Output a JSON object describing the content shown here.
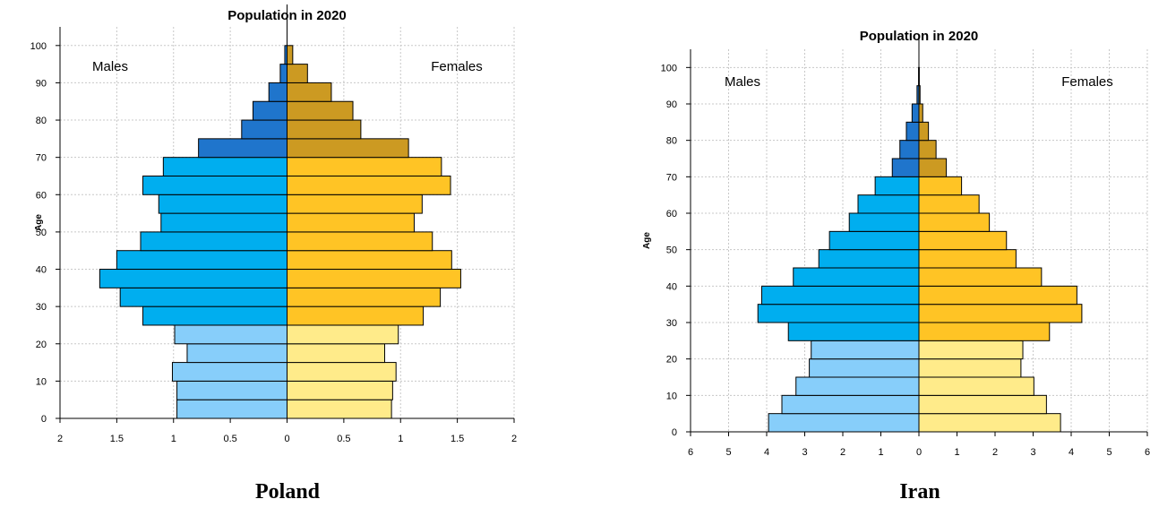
{
  "colors": {
    "male_young": "#87CEFA",
    "male_adult": "#00AEEF",
    "male_old": "#1F75CC",
    "female_young": "#FFEB8A",
    "female_adult": "#FFC425",
    "female_old": "#CC9A22",
    "grid": "#c8c8c8",
    "outline": "#000000"
  },
  "chart_data": [
    {
      "type": "bar",
      "orientation": "horizontal-pyramid",
      "title": "Population in 2020",
      "country": "Poland",
      "ylabel": "Age",
      "left_label": "Males",
      "right_label": "Females",
      "xlim": [
        -2,
        2
      ],
      "ylim": [
        0,
        105
      ],
      "x_ticks": [
        -2,
        -1.5,
        -1,
        -0.5,
        0,
        0.5,
        1,
        1.5,
        2
      ],
      "x_tick_labels": [
        "2",
        "1.5",
        "1",
        "0.5",
        "0",
        "0.5",
        "1",
        "1.5",
        "2"
      ],
      "y_ticks": [
        0,
        10,
        20,
        30,
        40,
        50,
        60,
        70,
        80,
        90,
        100
      ],
      "y_tick_labels": [
        "0",
        "10",
        "20",
        "30",
        "40",
        "50",
        "60",
        "70",
        "80",
        "90",
        "100"
      ],
      "grid": true,
      "age_groups": [
        "0-4",
        "5-9",
        "10-14",
        "15-19",
        "20-24",
        "25-29",
        "30-34",
        "35-39",
        "40-44",
        "45-49",
        "50-54",
        "55-59",
        "60-64",
        "65-69",
        "70-74",
        "75-79",
        "80-84",
        "85-89",
        "90-94",
        "95-99",
        "100+"
      ],
      "series": [
        {
          "name": "Males",
          "values": [
            0.97,
            0.97,
            1.01,
            0.88,
            0.99,
            1.27,
            1.47,
            1.65,
            1.5,
            1.29,
            1.11,
            1.13,
            1.27,
            1.09,
            0.78,
            0.4,
            0.3,
            0.16,
            0.06,
            0.02,
            0
          ]
        },
        {
          "name": "Females",
          "values": [
            0.92,
            0.93,
            0.96,
            0.86,
            0.98,
            1.2,
            1.35,
            1.53,
            1.45,
            1.28,
            1.12,
            1.19,
            1.44,
            1.36,
            1.07,
            0.65,
            0.58,
            0.39,
            0.18,
            0.05,
            0
          ]
        }
      ]
    },
    {
      "type": "bar",
      "orientation": "horizontal-pyramid",
      "title": "Population in 2020",
      "country": "Iran",
      "ylabel": "Age",
      "left_label": "Males",
      "right_label": "Females",
      "xlim": [
        -6,
        6
      ],
      "ylim": [
        0,
        105
      ],
      "x_ticks": [
        -6,
        -5,
        -4,
        -3,
        -2,
        -1,
        0,
        1,
        2,
        3,
        4,
        5,
        6
      ],
      "x_tick_labels": [
        "6",
        "5",
        "4",
        "3",
        "2",
        "1",
        "0",
        "1",
        "2",
        "3",
        "4",
        "5",
        "6"
      ],
      "y_ticks": [
        0,
        10,
        20,
        30,
        40,
        50,
        60,
        70,
        80,
        90,
        100
      ],
      "y_tick_labels": [
        "0",
        "10",
        "20",
        "30",
        "40",
        "50",
        "60",
        "70",
        "80",
        "90",
        "100"
      ],
      "grid": true,
      "age_groups": [
        "0-4",
        "5-9",
        "10-14",
        "15-19",
        "20-24",
        "25-29",
        "30-34",
        "35-39",
        "40-44",
        "45-49",
        "50-54",
        "55-59",
        "60-64",
        "65-69",
        "70-74",
        "75-79",
        "80-84",
        "85-89",
        "90-94",
        "95-99",
        "100+"
      ],
      "series": [
        {
          "name": "Males",
          "values": [
            3.95,
            3.6,
            3.23,
            2.88,
            2.83,
            3.43,
            4.23,
            4.13,
            3.3,
            2.63,
            2.35,
            1.83,
            1.6,
            1.15,
            0.7,
            0.5,
            0.33,
            0.18,
            0.05,
            0.01,
            0
          ]
        },
        {
          "name": "Females",
          "values": [
            3.72,
            3.35,
            3.02,
            2.68,
            2.73,
            3.43,
            4.28,
            4.15,
            3.22,
            2.55,
            2.3,
            1.85,
            1.58,
            1.12,
            0.72,
            0.45,
            0.25,
            0.1,
            0.03,
            0.01,
            0
          ]
        }
      ]
    }
  ]
}
